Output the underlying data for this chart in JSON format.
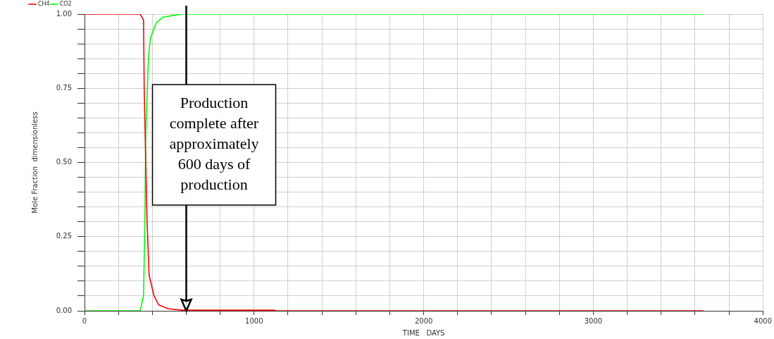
{
  "chart_data": {
    "type": "line",
    "xlabel": "TIME   DAYS",
    "ylabel": "Mole Fraction  dimensionless",
    "xlim": [
      0,
      4000
    ],
    "ylim": [
      0,
      1
    ],
    "xticks": [
      0,
      {
        "value": 200,
        "label": null
      },
      {
        "value": 400,
        "label": null
      },
      {
        "value": 600,
        "label": null
      },
      {
        "value": 800,
        "label": null
      },
      1000,
      {
        "value": 1200,
        "label": null
      },
      {
        "value": 1400,
        "label": null
      },
      {
        "value": 1600,
        "label": null
      },
      {
        "value": 1800,
        "label": null
      },
      2000,
      {
        "value": 2200,
        "label": null
      },
      {
        "value": 2400,
        "label": null
      },
      {
        "value": 2600,
        "label": null
      },
      {
        "value": 2800,
        "label": null
      },
      3000,
      {
        "value": 3200,
        "label": null
      },
      {
        "value": 3400,
        "label": null
      },
      {
        "value": 3600,
        "label": null
      },
      {
        "value": 3800,
        "label": null
      },
      4000
    ],
    "yticks": [
      {
        "value": 0,
        "label": "0.00"
      },
      {
        "value": 0.05,
        "label": null
      },
      {
        "value": 0.1,
        "label": null
      },
      {
        "value": 0.15,
        "label": null
      },
      {
        "value": 0.2,
        "label": null
      },
      {
        "value": 0.25,
        "label": "0.25"
      },
      {
        "value": 0.3,
        "label": null
      },
      {
        "value": 0.35,
        "label": null
      },
      {
        "value": 0.4,
        "label": null
      },
      {
        "value": 0.45,
        "label": null
      },
      {
        "value": 0.5,
        "label": "0.50"
      },
      {
        "value": 0.55,
        "label": null
      },
      {
        "value": 0.6,
        "label": null
      },
      {
        "value": 0.65,
        "label": null
      },
      {
        "value": 0.7,
        "label": null
      },
      {
        "value": 0.75,
        "label": "0.75"
      },
      {
        "value": 0.8,
        "label": null
      },
      {
        "value": 0.85,
        "label": null
      },
      {
        "value": 0.9,
        "label": null
      },
      {
        "value": 0.95,
        "label": null
      },
      {
        "value": 1,
        "label": "1.00"
      }
    ],
    "grid": true,
    "legend": "top left",
    "marker": "none",
    "line_style": "solid",
    "series": [
      {
        "name": "CH4",
        "color": "#ff0000",
        "x": [
          0,
          328,
          348,
          352,
          361,
          369,
          381,
          410,
          438,
          492,
          574,
          1120,
          1130,
          3650
        ],
        "values": [
          1,
          1,
          0.98,
          0.75,
          0.5,
          0.3,
          0.12,
          0.05,
          0.02,
          0.007,
          0.002,
          0.002,
          0,
          0
        ]
      },
      {
        "name": "CO2",
        "color": "#00ff00",
        "x": [
          0,
          328,
          348,
          356,
          361,
          377,
          389,
          422,
          463,
          574,
          3650
        ],
        "values": [
          0,
          0,
          0.05,
          0.3,
          0.6,
          0.85,
          0.92,
          0.97,
          0.99,
          1,
          1
        ]
      }
    ],
    "ref_lines": [
      {
        "axis": "x",
        "value": 600,
        "label": "Production complete after approximately 600 days of production",
        "color": "#000000"
      }
    ]
  }
}
